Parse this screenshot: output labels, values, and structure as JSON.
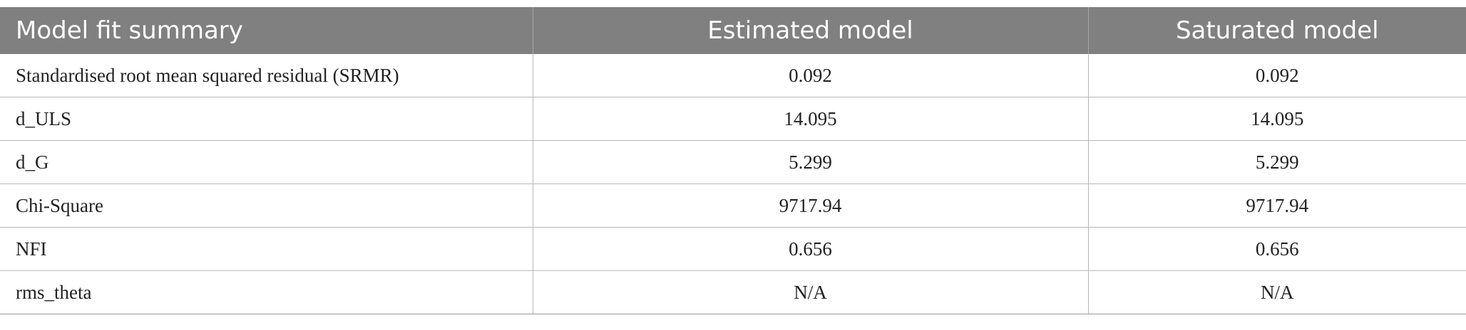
{
  "table": {
    "header": [
      "Model fit summary",
      "Estimated model",
      "Saturated model"
    ],
    "rows": [
      [
        "Standardised root mean squared residual (SRMR)",
        "0.092",
        "0.092"
      ],
      [
        "d_ULS",
        "14.095",
        "14.095"
      ],
      [
        "d_G",
        "5.299",
        "5.299"
      ],
      [
        "Chi-Square",
        "9717.94",
        "9717.94"
      ],
      [
        "NFI",
        "0.656",
        "0.656"
      ],
      [
        "rms_theta",
        "N/A",
        "N/A"
      ]
    ]
  }
}
